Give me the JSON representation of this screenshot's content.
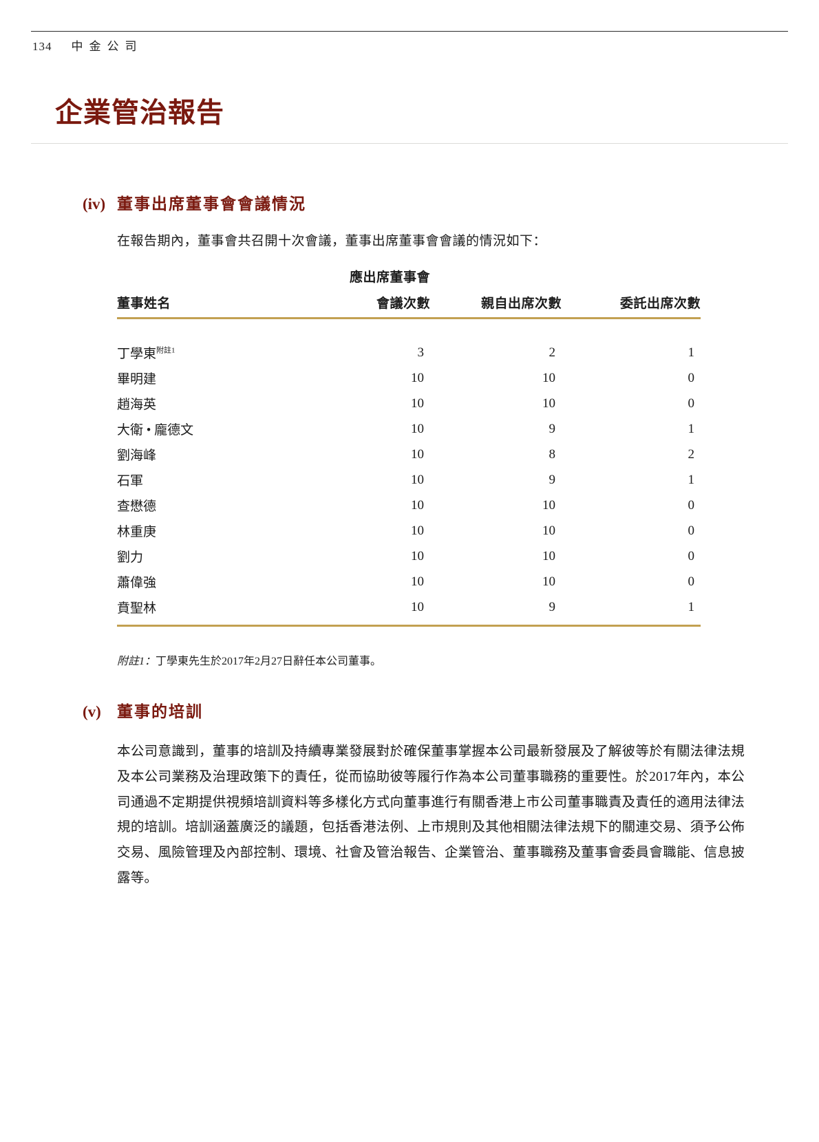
{
  "running_header": {
    "page_number": "134",
    "company_name": "中金公司"
  },
  "title": "企業管治報告",
  "colors": {
    "accent_maroon": "#7a190f",
    "table_rule_gold": "#c2a051",
    "body_text": "#1c1c1c"
  },
  "section_iv": {
    "marker": "(iv)",
    "heading": "董事出席董事會會議情況",
    "intro": "在報告期內，董事會共召開十次會議，董事出席董事會會議的情況如下：",
    "table": {
      "headers": {
        "name": "董事姓名",
        "required_line1": "應出席董事會",
        "required_line2": "會議次數",
        "in_person": "親自出席次數",
        "by_proxy": "委託出席次數"
      },
      "rows": [
        {
          "name": "丁學東",
          "note_ref": "附註1",
          "meetings": "3",
          "in_person": "2",
          "proxy": "1"
        },
        {
          "name": "畢明建",
          "note_ref": "",
          "meetings": "10",
          "in_person": "10",
          "proxy": "0"
        },
        {
          "name": "趙海英",
          "note_ref": "",
          "meetings": "10",
          "in_person": "10",
          "proxy": "0"
        },
        {
          "name": "大衛 • 龐德文",
          "note_ref": "",
          "meetings": "10",
          "in_person": "9",
          "proxy": "1"
        },
        {
          "name": "劉海峰",
          "note_ref": "",
          "meetings": "10",
          "in_person": "8",
          "proxy": "2"
        },
        {
          "name": "石軍",
          "note_ref": "",
          "meetings": "10",
          "in_person": "9",
          "proxy": "1"
        },
        {
          "name": "查懋德",
          "note_ref": "",
          "meetings": "10",
          "in_person": "10",
          "proxy": "0"
        },
        {
          "name": "林重庚",
          "note_ref": "",
          "meetings": "10",
          "in_person": "10",
          "proxy": "0"
        },
        {
          "name": "劉力",
          "note_ref": "",
          "meetings": "10",
          "in_person": "10",
          "proxy": "0"
        },
        {
          "name": "蕭偉強",
          "note_ref": "",
          "meetings": "10",
          "in_person": "10",
          "proxy": "0"
        },
        {
          "name": "賁聖林",
          "note_ref": "",
          "meetings": "10",
          "in_person": "9",
          "proxy": "1"
        }
      ]
    },
    "note": {
      "label": "附註1：",
      "text": "丁學東先生於2017年2月27日辭任本公司董事。"
    }
  },
  "section_v": {
    "marker": "(v)",
    "heading": "董事的培訓",
    "paragraph": "本公司意識到，董事的培訓及持續專業發展對於確保董事掌握本公司最新發展及了解彼等於有關法律法規及本公司業務及治理政策下的責任，從而協助彼等履行作為本公司董事職務的重要性。於2017年內，本公司通過不定期提供視頻培訓資料等多樣化方式向董事進行有關香港上市公司董事職責及責任的適用法律法規的培訓。培訓涵蓋廣泛的議題，包括香港法例、上市規則及其他相關法律法規下的關連交易、須予公佈交易、風險管理及內部控制、環境、社會及管治報告、企業管治、董事職務及董事會委員會職能、信息披露等。"
  }
}
